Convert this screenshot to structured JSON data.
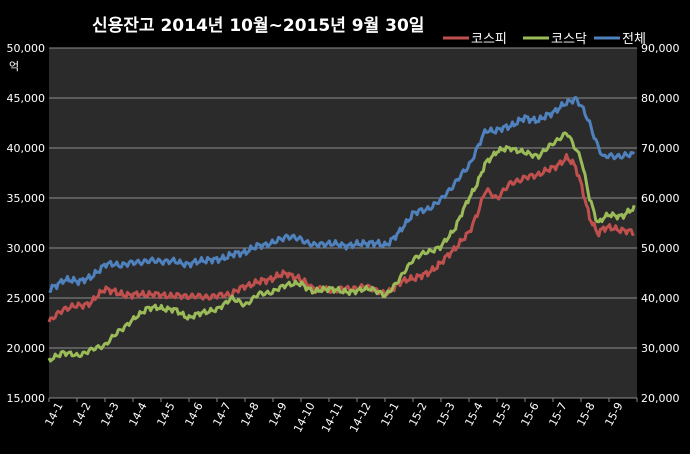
{
  "colors": {
    "background": "#000000",
    "plot_area": "#2b2b2b",
    "grid": "#8c8c8c",
    "text": "#ffffff",
    "kospi": "#c0504d",
    "kosdaq": "#9bbb59",
    "total": "#4f81bd"
  },
  "chart_data": {
    "type": "line",
    "title": "신용잔고 2014년 10월~2015년 9월 30일",
    "ylabel_left_unit": "억",
    "ylim_left": [
      15000,
      50000
    ],
    "ylim_right": [
      20000,
      90000
    ],
    "yticks_left": [
      "15,000",
      "20,000",
      "25,000",
      "30,000",
      "35,000",
      "40,000",
      "45,000",
      "50,000"
    ],
    "yticks_right": [
      "20,000",
      "30,000",
      "40,000",
      "50,000",
      "60,000",
      "70,000",
      "80,000",
      "90,000"
    ],
    "categories": [
      "14-1",
      "14-2",
      "14-3",
      "14-4",
      "14-5",
      "14-6",
      "14-7",
      "14-8",
      "14-9",
      "14-10",
      "14-11",
      "14-12",
      "15-1",
      "15-2",
      "15-3",
      "15-4",
      "15-5",
      "15-6",
      "15-7",
      "15-8",
      "15-9"
    ],
    "grid": true,
    "legend_position": "top-right",
    "x": [
      0,
      0.5,
      1,
      1.5,
      2,
      2.5,
      3,
      3.5,
      4,
      4.5,
      5,
      5.5,
      6,
      6.5,
      7,
      7.5,
      8,
      8.5,
      9,
      9.5,
      10,
      10.5,
      11,
      11.5,
      12,
      12.5,
      13,
      13.5,
      14,
      14.5,
      15,
      15.3,
      15.6,
      16,
      16.5,
      17,
      17.5,
      18,
      18.5,
      18.8,
      19,
      19.3,
      19.6,
      19.8,
      20,
      20.5,
      20.9
    ],
    "series": [
      {
        "name": "코스피",
        "axis": "left",
        "values": [
          22600,
          23900,
          24200,
          24500,
          26000,
          25400,
          25300,
          25400,
          25300,
          25200,
          25200,
          25100,
          25200,
          25400,
          26200,
          26600,
          27000,
          27500,
          26800,
          25900,
          25800,
          25900,
          26000,
          26100,
          25300,
          26500,
          27000,
          27400,
          28500,
          30000,
          31500,
          33500,
          35800,
          35000,
          36500,
          37000,
          37400,
          38000,
          39000,
          38200,
          36500,
          33000,
          31500,
          32000,
          32000,
          31800,
          31500
        ]
      },
      {
        "name": "코스닥",
        "axis": "left",
        "values": [
          18700,
          19600,
          19200,
          19800,
          20300,
          21700,
          22800,
          24000,
          24000,
          23800,
          23000,
          23600,
          23800,
          25000,
          24300,
          25400,
          25600,
          26400,
          26400,
          25600,
          26000,
          25600,
          25700,
          26000,
          25200,
          26800,
          28900,
          29600,
          30100,
          32000,
          35000,
          36500,
          38500,
          39700,
          40000,
          39500,
          39200,
          40500,
          41500,
          40000,
          39000,
          35000,
          32500,
          33000,
          33300,
          33200,
          34000
        ]
      },
      {
        "name": "전체",
        "axis": "right",
        "values": [
          41500,
          43600,
          43400,
          44000,
          46800,
          46600,
          47000,
          47400,
          47400,
          47300,
          46700,
          47600,
          47600,
          48600,
          49200,
          50500,
          51000,
          52400,
          51700,
          50500,
          51000,
          50500,
          50700,
          51100,
          50500,
          53000,
          57000,
          57700,
          59600,
          63000,
          66500,
          70000,
          73500,
          73500,
          74500,
          76000,
          75500,
          77200,
          79000,
          80000,
          78500,
          75000,
          70500,
          68000,
          68500,
          68300,
          68900
        ]
      }
    ]
  }
}
